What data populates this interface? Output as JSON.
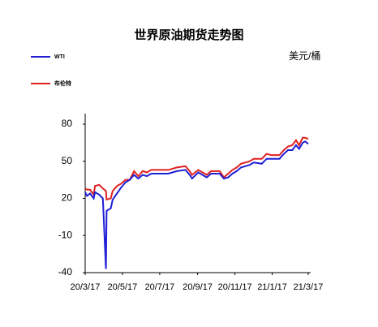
{
  "chart_data": {
    "type": "line",
    "title": "世界原油期货走势图",
    "unit": "美元/桶",
    "x": [
      "20/3/17",
      "20/3/20",
      "20/3/25",
      "20/3/31",
      "20/4/2",
      "20/4/9",
      "20/4/15",
      "20/4/20",
      "20/4/21",
      "20/4/28",
      "20/5/1",
      "20/5/8",
      "20/5/15",
      "20/5/22",
      "20/5/29",
      "20/6/5",
      "20/6/12",
      "20/6/19",
      "20/6/26",
      "20/7/3",
      "20/7/17",
      "20/7/31",
      "20/8/14",
      "20/8/28",
      "20/9/4",
      "20/9/8",
      "20/9/18",
      "20/10/2",
      "20/10/9",
      "20/10/23",
      "20/10/30",
      "20/11/6",
      "20/11/13",
      "20/11/20",
      "20/11/27",
      "20/12/4",
      "20/12/11",
      "20/12/18",
      "20/12/31",
      "21/1/8",
      "21/1/15",
      "21/1/29",
      "21/2/5",
      "21/2/12",
      "21/2/19",
      "21/2/25",
      "21/3/2",
      "21/3/8",
      "21/3/12",
      "21/3/17"
    ],
    "series": [
      {
        "name": "WTI",
        "color": "#1f1fd6",
        "values": [
          25,
          22,
          24,
          20,
          25,
          23,
          20,
          -37,
          10,
          12,
          19,
          24,
          29,
          33,
          35,
          39,
          36,
          39,
          38,
          40,
          40,
          40,
          42,
          43,
          39,
          36,
          41,
          37,
          40,
          40,
          36,
          37,
          40,
          42,
          45,
          46,
          47,
          49,
          48,
          52,
          52,
          52,
          56,
          59,
          59,
          63,
          60,
          65,
          66,
          64
        ]
      },
      {
        "name": "布伦特",
        "color": "#e02020",
        "values": [
          28,
          27,
          27,
          23,
          30,
          31,
          28,
          26,
          19,
          20,
          26,
          30,
          32,
          35,
          35,
          42,
          38,
          42,
          41,
          43,
          43,
          43,
          45,
          46,
          42,
          39,
          43,
          39,
          42,
          42,
          37,
          40,
          43,
          45,
          48,
          49,
          50,
          52,
          52,
          56,
          55,
          55,
          59,
          62,
          63,
          67,
          63,
          69,
          69,
          68
        ]
      }
    ],
    "xlim": [
      "20/3/17",
      "21/3/17"
    ],
    "xticks": [
      "20/3/17",
      "20/5/17",
      "20/7/17",
      "20/9/17",
      "20/11/17",
      "21/1/17",
      "21/3/17"
    ],
    "ylim": [
      -40,
      80
    ],
    "yticks": [
      -40,
      -10,
      20,
      50,
      80
    ],
    "grid": false
  }
}
